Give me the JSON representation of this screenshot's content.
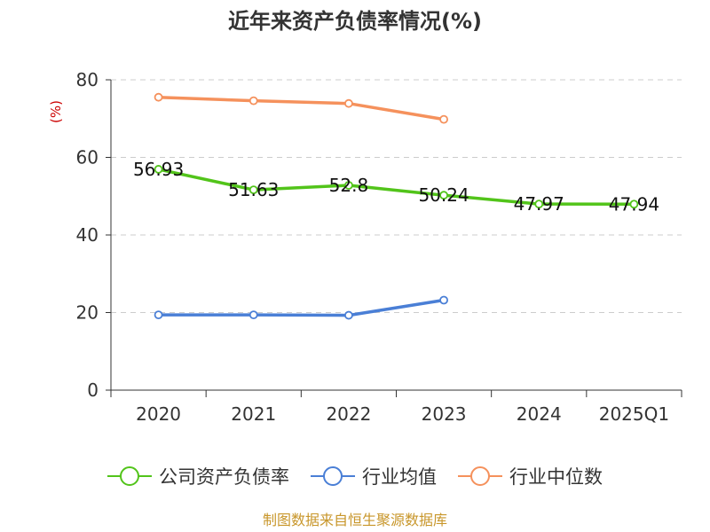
{
  "chart_data": {
    "type": "line",
    "title": "近年来资产负债率情况(%)",
    "ylabel": "(%)",
    "xlabel": "",
    "categories": [
      "2020",
      "2021",
      "2022",
      "2023",
      "2024",
      "2025Q1"
    ],
    "ylim": [
      0,
      80
    ],
    "yticks": [
      0,
      20,
      40,
      60,
      80
    ],
    "grid": true,
    "legend_position": "bottom",
    "series": [
      {
        "name": "公司资产负债率",
        "color": "#52c41a",
        "values": [
          56.93,
          51.63,
          52.8,
          50.24,
          47.97,
          47.94
        ],
        "labels": [
          "56.93",
          "51.63",
          "52.8",
          "50.24",
          "47.97",
          "47.94"
        ],
        "show_labels": true
      },
      {
        "name": "行业均值",
        "color": "#4a7fd6",
        "values": [
          19.4,
          19.4,
          19.3,
          23.2,
          null,
          null
        ],
        "show_labels": false
      },
      {
        "name": "行业中位数",
        "color": "#f5915c",
        "values": [
          75.5,
          74.6,
          73.9,
          69.8,
          null,
          null
        ],
        "show_labels": false
      }
    ],
    "source": "制图数据来自恒生聚源数据库"
  }
}
